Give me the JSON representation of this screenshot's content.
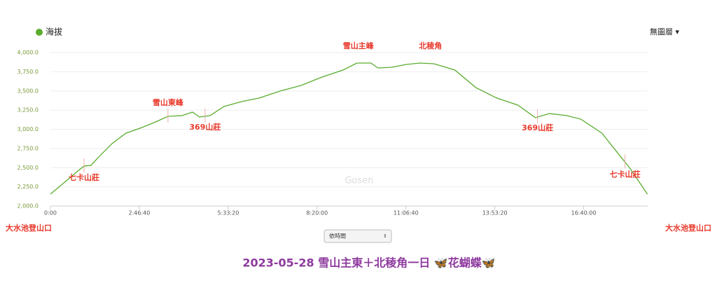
{
  "chart_data": {
    "type": "line",
    "legend": "海拔",
    "layer_menu": "無圖層 ▾",
    "mode_select": "依時間",
    "watermark": "Gosen",
    "title": "2023-05-28 雪山主東＋北稜角一日 🦋花蝴蝶🦋",
    "start_label": "大水池登山口",
    "end_label": "大水池登山口",
    "xlim": [
      0,
      67200
    ],
    "xticks": [
      {
        "value": 0,
        "label": "0:00"
      },
      {
        "value": 10000,
        "label": "2:46:40"
      },
      {
        "value": 20000,
        "label": "5:33:20"
      },
      {
        "value": 30000,
        "label": "8:20:00"
      },
      {
        "value": 40000,
        "label": "11:06:40"
      },
      {
        "value": 50000,
        "label": "13:53:20"
      },
      {
        "value": 60000,
        "label": "16:40:00"
      }
    ],
    "ylim": [
      2000,
      4000
    ],
    "yticks": [
      {
        "value": 2000,
        "label": "2,000.0"
      },
      {
        "value": 2250,
        "label": "2,250.0"
      },
      {
        "value": 2500,
        "label": "2,500.0"
      },
      {
        "value": 2750,
        "label": "2,750.0"
      },
      {
        "value": 3000,
        "label": "3,000.0"
      },
      {
        "value": 3250,
        "label": "3,250.0"
      },
      {
        "value": 3500,
        "label": "3,500.0"
      },
      {
        "value": 3750,
        "label": "3,750.0"
      },
      {
        "value": 4000,
        "label": "4,000.0"
      }
    ],
    "grid": true,
    "series": [
      {
        "name": "海拔",
        "color": "#5aac2e",
        "x": [
          0,
          1417,
          2992,
          3780,
          4567,
          5354,
          6929,
          8504,
          10079,
          11654,
          13228,
          14803,
          15984,
          16772,
          17953,
          19528,
          21496,
          23465,
          25827,
          28189,
          30551,
          32913,
          34488,
          36063,
          36850,
          38425,
          40000,
          41575,
          43150,
          45512,
          47874,
          50236,
          52598,
          54567,
          56142,
          58110,
          59685,
          62047,
          63622,
          65197,
          67165
        ],
        "values": [
          2155,
          2292,
          2447,
          2520,
          2530,
          2630,
          2813,
          2950,
          3014,
          3087,
          3169,
          3178,
          3224,
          3160,
          3178,
          3297,
          3361,
          3406,
          3498,
          3571,
          3680,
          3772,
          3863,
          3863,
          3799,
          3808,
          3845,
          3863,
          3854,
          3772,
          3543,
          3406,
          3315,
          3151,
          3205,
          3178,
          3132,
          2950,
          2721,
          2493,
          2155
        ]
      }
    ],
    "annotations": [
      {
        "text": "七卡山莊",
        "x": 3780
      },
      {
        "text": "雪山東峰",
        "x": 13228
      },
      {
        "text": "369山莊",
        "x": 17402
      },
      {
        "text": "雪山主峰",
        "x": 34646
      },
      {
        "text": "北稜角",
        "x": 42756
      },
      {
        "text": "369山莊",
        "x": 54803
      },
      {
        "text": "七卡山莊",
        "x": 64646
      }
    ]
  }
}
